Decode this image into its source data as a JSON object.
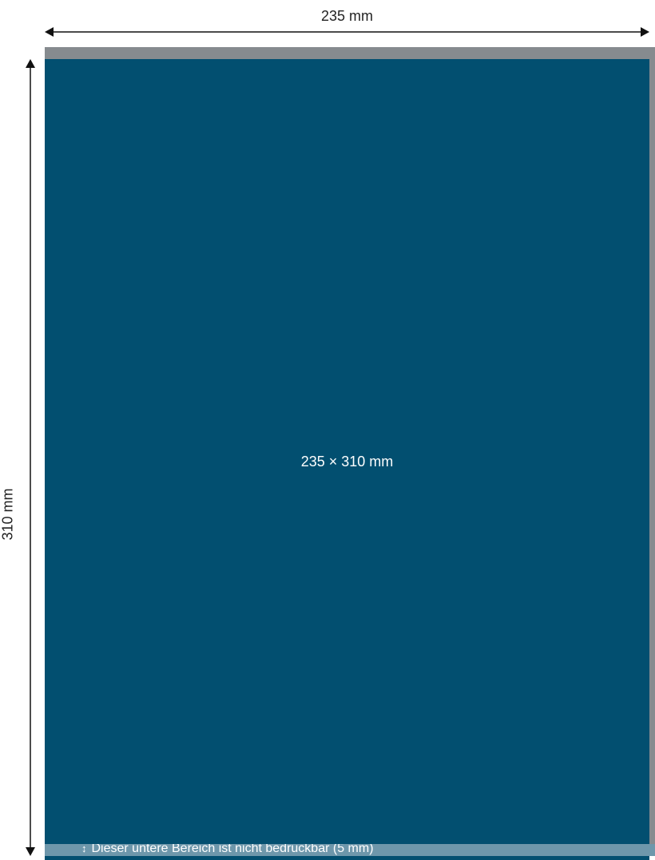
{
  "dimensions": {
    "width_label": "235 mm",
    "height_label": "310 mm"
  },
  "sheet": {
    "size_label": "235 × 310 mm",
    "color": "#024f70",
    "frame_color": "#868b8f"
  },
  "footer": {
    "icon": "vertical-double-arrow-icon",
    "note": "Dieser untere Bereich ist nicht bedruckbar (5 mm)",
    "strip_color": "#6e97ab"
  }
}
